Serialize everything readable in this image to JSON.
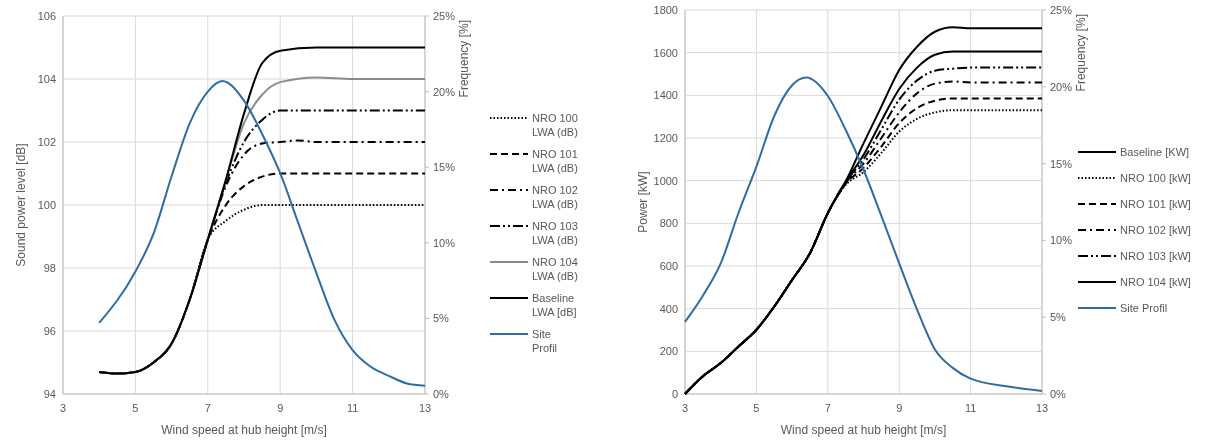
{
  "chart_data": [
    {
      "type": "line",
      "xlabel": "Wind speed at hub height [m/s]",
      "ylabel": "Sound power level [dB]",
      "y2label": "Frequency [%]",
      "xlim": [
        3,
        13
      ],
      "xticks": [
        3,
        5,
        7,
        9,
        11,
        13
      ],
      "ylim": [
        94,
        106
      ],
      "yticks": [
        94,
        96,
        98,
        100,
        102,
        104,
        106
      ],
      "y2lim": [
        0,
        25
      ],
      "y2ticks": [
        {
          "value": 0,
          "label": "0%"
        },
        {
          "value": 5,
          "label": "5%"
        },
        {
          "value": 10,
          "label": "10%"
        },
        {
          "value": 15,
          "label": "15%"
        },
        {
          "value": 20,
          "label": "20%"
        },
        {
          "value": 25,
          "label": "25%"
        }
      ],
      "grid": true,
      "legend": "right",
      "series": [
        {
          "name": "NRO 100 LWA (dB)",
          "color": "#000000",
          "line_style": "dotted",
          "x": [
            4,
            4.5,
            5,
            5.5,
            6,
            6.5,
            7,
            7.5,
            8,
            8.5,
            9,
            10,
            11,
            12,
            13
          ],
          "values": [
            94.7,
            94.65,
            94.7,
            95.0,
            95.6,
            97.0,
            98.9,
            99.5,
            99.85,
            100.0,
            100.0,
            100.0,
            100.0,
            100.0,
            100.0
          ]
        },
        {
          "name": "NRO 101 LWA (dB)",
          "color": "#000000",
          "line_style": "dashed",
          "x": [
            4,
            4.5,
            5,
            5.5,
            6,
            6.5,
            7,
            7.5,
            8,
            8.5,
            9,
            10,
            11,
            12,
            13
          ],
          "values": [
            94.7,
            94.65,
            94.7,
            95.0,
            95.6,
            97.0,
            98.9,
            100.0,
            100.6,
            100.9,
            101.0,
            101.0,
            101.0,
            101.0,
            101.0
          ]
        },
        {
          "name": "NRO 102 LWA (dB)",
          "color": "#000000",
          "line_style": "dashdot",
          "x": [
            4,
            4.5,
            5,
            5.5,
            6,
            6.5,
            7,
            7.5,
            8,
            8.5,
            9,
            9.5,
            10,
            11,
            12,
            13
          ],
          "values": [
            94.7,
            94.65,
            94.7,
            95.0,
            95.6,
            97.0,
            98.9,
            100.6,
            101.6,
            101.95,
            102.0,
            102.05,
            102.0,
            102.0,
            102.0,
            102.0
          ]
        },
        {
          "name": "NRO 103 LWA (dB)",
          "color": "#000000",
          "line_style": "dashdotdot",
          "x": [
            4,
            4.5,
            5,
            5.5,
            6,
            6.5,
            7,
            7.5,
            8,
            8.5,
            9,
            10,
            11,
            12,
            13
          ],
          "values": [
            94.7,
            94.65,
            94.7,
            95.0,
            95.6,
            97.0,
            98.9,
            100.7,
            102.0,
            102.7,
            103.0,
            103.0,
            103.0,
            103.0,
            103.0
          ]
        },
        {
          "name": "NRO 104 LWA (dB)",
          "color": "#8c8c8c",
          "line_style": "solid",
          "x": [
            4,
            4.5,
            5,
            5.5,
            6,
            6.5,
            7,
            7.5,
            8,
            8.5,
            9,
            10,
            11,
            12,
            13
          ],
          "values": [
            94.7,
            94.65,
            94.7,
            95.0,
            95.6,
            97.0,
            98.9,
            100.8,
            102.6,
            103.5,
            103.9,
            104.05,
            104.0,
            104.0,
            104.0
          ]
        },
        {
          "name": "Baseline LWA [dB]",
          "color": "#000000",
          "line_style": "solid",
          "x": [
            4,
            4.5,
            5,
            5.5,
            6,
            6.5,
            7,
            7.5,
            8,
            8.5,
            9,
            10,
            11,
            12,
            13
          ],
          "values": [
            94.7,
            94.65,
            94.7,
            95.0,
            95.6,
            97.0,
            98.9,
            100.8,
            102.9,
            104.5,
            104.9,
            105.0,
            105.0,
            105.0,
            105.0
          ]
        },
        {
          "name": "Site Profil",
          "color": "#2e6da4",
          "line_style": "solid",
          "axis": "y2",
          "x": [
            4,
            5,
            5.5,
            6,
            6.5,
            7,
            7.4,
            8,
            8.5,
            9,
            9.5,
            10,
            10.5,
            11,
            11.5,
            12,
            12.5,
            13
          ],
          "values": [
            4.7,
            8.1,
            10.6,
            14.4,
            17.9,
            20.0,
            20.7,
            19.4,
            17.2,
            14.6,
            11.3,
            8.0,
            4.9,
            2.9,
            1.8,
            1.2,
            0.7,
            0.55
          ]
        }
      ]
    },
    {
      "type": "line",
      "xlabel": "Wind speed at hub height [m/s]",
      "ylabel": "Power [kW]",
      "y2label": "Frequency [%]",
      "xlim": [
        3,
        13
      ],
      "xticks": [
        3,
        5,
        7,
        9,
        11,
        13
      ],
      "ylim": [
        0,
        1800
      ],
      "yticks": [
        0,
        200,
        400,
        600,
        800,
        1000,
        1200,
        1400,
        1600,
        1800
      ],
      "y2lim": [
        0,
        25
      ],
      "y2ticks": [
        {
          "value": 0,
          "label": "0%"
        },
        {
          "value": 5,
          "label": "5%"
        },
        {
          "value": 10,
          "label": "10%"
        },
        {
          "value": 15,
          "label": "15%"
        },
        {
          "value": 20,
          "label": "20%"
        },
        {
          "value": 25,
          "label": "25%"
        }
      ],
      "grid": true,
      "legend": "right",
      "series": [
        {
          "name": "Baseline [KW]",
          "color": "#000000",
          "line_style": "solid",
          "x": [
            3,
            3.5,
            4,
            4.5,
            5,
            5.5,
            6,
            6.5,
            7,
            7.5,
            8,
            8.5,
            9,
            9.5,
            10,
            10.5,
            11,
            12,
            13
          ],
          "values": [
            0,
            83,
            145,
            223,
            301,
            410,
            535,
            660,
            848,
            996,
            1175,
            1347,
            1519,
            1628,
            1698,
            1719,
            1714,
            1714,
            1714
          ]
        },
        {
          "name": "NRO 100 [kW]",
          "color": "#000000",
          "line_style": "dotted",
          "x": [
            3,
            3.5,
            4,
            4.5,
            5,
            5.5,
            6,
            6.5,
            7,
            7.5,
            8,
            8.5,
            9,
            9.5,
            10,
            10.5,
            11,
            12,
            13
          ],
          "values": [
            0,
            83,
            145,
            223,
            301,
            410,
            535,
            660,
            848,
            980,
            1040,
            1130,
            1230,
            1290,
            1320,
            1330,
            1330,
            1330,
            1330
          ]
        },
        {
          "name": "NRO 101 [kW]",
          "color": "#000000",
          "line_style": "dashed",
          "x": [
            3,
            3.5,
            4,
            4.5,
            5,
            5.5,
            6,
            6.5,
            7,
            7.5,
            8,
            8.5,
            9,
            9.5,
            10,
            10.5,
            11,
            12,
            13
          ],
          "values": [
            0,
            83,
            145,
            223,
            301,
            410,
            535,
            660,
            848,
            985,
            1060,
            1160,
            1270,
            1340,
            1375,
            1385,
            1385,
            1385,
            1385
          ]
        },
        {
          "name": "NRO 102 [kW]",
          "color": "#000000",
          "line_style": "dashdot",
          "x": [
            3,
            3.5,
            4,
            4.5,
            5,
            5.5,
            6,
            6.5,
            7,
            7.5,
            8,
            8.5,
            9,
            9.5,
            10,
            10.5,
            11,
            12,
            13
          ],
          "values": [
            0,
            83,
            145,
            223,
            301,
            410,
            535,
            660,
            848,
            990,
            1080,
            1200,
            1320,
            1410,
            1455,
            1465,
            1460,
            1460,
            1460
          ]
        },
        {
          "name": "NRO 103 [kW]",
          "color": "#000000",
          "line_style": "dashdotdot",
          "x": [
            3,
            3.5,
            4,
            4.5,
            5,
            5.5,
            6,
            6.5,
            7,
            7.5,
            8,
            8.5,
            9,
            9.5,
            10,
            10.5,
            11,
            12,
            13
          ],
          "values": [
            0,
            83,
            145,
            223,
            301,
            410,
            535,
            660,
            848,
            993,
            1100,
            1240,
            1380,
            1470,
            1515,
            1525,
            1530,
            1530,
            1530
          ]
        },
        {
          "name": "NRO 104 [kW]",
          "color": "#000000",
          "line_style": "solid",
          "x": [
            3,
            3.5,
            4,
            4.5,
            5,
            5.5,
            6,
            6.5,
            7,
            7.5,
            8,
            8.5,
            9,
            9.5,
            10,
            10.5,
            11,
            12,
            13
          ],
          "values": [
            0,
            83,
            145,
            223,
            301,
            410,
            535,
            660,
            848,
            996,
            1120,
            1280,
            1430,
            1530,
            1590,
            1605,
            1605,
            1605,
            1605
          ]
        },
        {
          "name": "Site Profil",
          "color": "#2e6da4",
          "line_style": "solid",
          "axis": "y2",
          "x": [
            3,
            3.5,
            4,
            4.5,
            5,
            5.5,
            6,
            6.4,
            7,
            7.5,
            8,
            8.5,
            9,
            9.5,
            10,
            10.5,
            11,
            12,
            13
          ],
          "values": [
            4.7,
            6.4,
            8.5,
            11.8,
            14.8,
            18.1,
            20.1,
            20.6,
            19.4,
            17.2,
            14.6,
            11.6,
            8.5,
            5.5,
            2.9,
            1.7,
            1.0,
            0.5,
            0.2
          ]
        }
      ]
    }
  ]
}
